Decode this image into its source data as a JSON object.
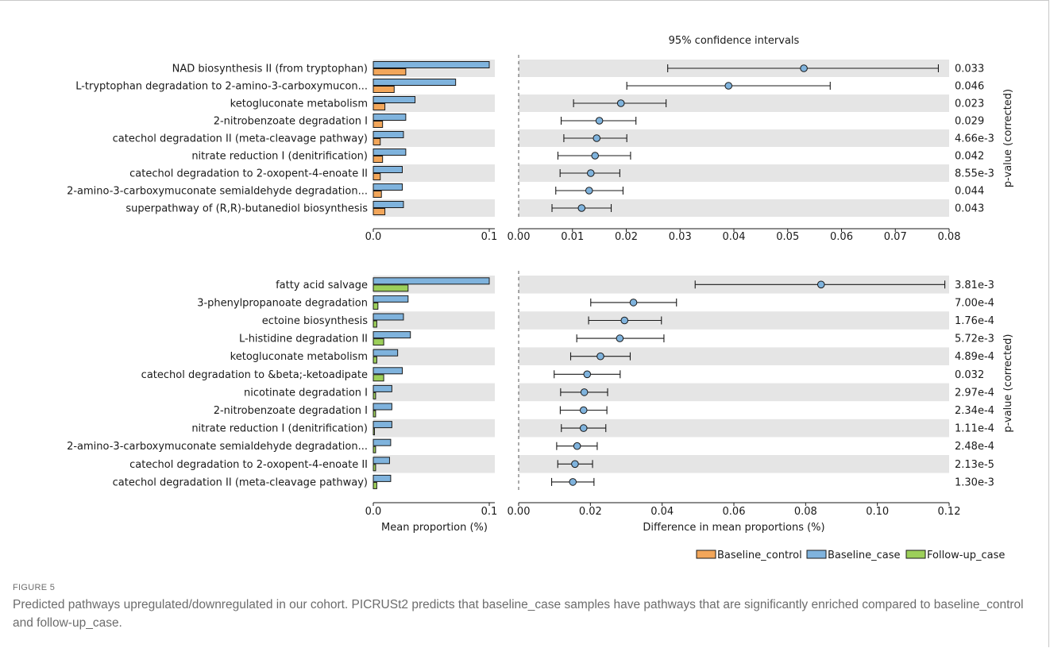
{
  "figure": {
    "label": "FIGURE 5",
    "caption": "Predicted pathways upregulated/downregulated in our cohort. PICRUSt2 predicts that baseline_case samples have pathways that are significantly enriched compared to baseline_control and follow-up_case."
  },
  "legend": [
    {
      "name": "Baseline_control",
      "color": "#f2a65a"
    },
    {
      "name": "Baseline_case",
      "color": "#7fb3dd"
    },
    {
      "name": "Follow-up_case",
      "color": "#9ccf5a"
    }
  ],
  "chart_data": [
    {
      "type": "bar",
      "panel": "top-left",
      "categories": [
        "NAD biosynthesis II (from tryptophan)",
        "L-tryptophan degradation to 2-amino-3-carboxymucon...",
        "ketogluconate metabolism",
        "2-nitrobenzoate degradation I",
        "catechol degradation II (meta-cleavage pathway)",
        "nitrate reduction I (denitrification)",
        "catechol degradation to 2-oxopent-4-enoate II",
        "2-amino-3-carboxymuconate semialdehyde degradation...",
        "superpathway of (R,R)-butanediol biosynthesis"
      ],
      "series": [
        {
          "name": "Baseline_case",
          "values": [
            0.1,
            0.071,
            0.036,
            0.028,
            0.026,
            0.028,
            0.025,
            0.025,
            0.026
          ]
        },
        {
          "name": "Baseline_control",
          "values": [
            0.028,
            0.018,
            0.01,
            0.008,
            0.006,
            0.008,
            0.006,
            0.007,
            0.01
          ]
        }
      ],
      "xlim": [
        0,
        0.1
      ],
      "xticks": [
        "0.0",
        "0.1"
      ],
      "xlabel": ""
    },
    {
      "type": "scatter",
      "panel": "top-right",
      "title": "95% confidence intervals",
      "categories": [
        "NAD biosynthesis II (from tryptophan)",
        "L-tryptophan degradation to 2-amino-3-carboxymucon...",
        "ketogluconate metabolism",
        "2-nitrobenzoate degradation I",
        "catechol degradation II (meta-cleavage pathway)",
        "nitrate reduction I (denitrification)",
        "catechol degradation to 2-oxopent-4-enoate II",
        "2-amino-3-carboxymuconate semialdehyde degradation...",
        "superpathway of (R,R)-butanediol biosynthesis"
      ],
      "means": [
        0.053,
        0.039,
        0.019,
        0.015,
        0.0145,
        0.0142,
        0.0134,
        0.0131,
        0.0117
      ],
      "lower": [
        0.0277,
        0.0201,
        0.0102,
        0.0079,
        0.0084,
        0.0073,
        0.0077,
        0.0069,
        0.0062
      ],
      "upper": [
        0.078,
        0.0579,
        0.0274,
        0.0218,
        0.0201,
        0.0208,
        0.0188,
        0.0194,
        0.0172
      ],
      "pvalues": [
        "0.033",
        "0.046",
        "0.023",
        "0.029",
        "4.66e-3",
        "0.042",
        "8.55e-3",
        "0.044",
        "0.043"
      ],
      "xlim": [
        0,
        0.08
      ],
      "xticks": [
        "0.00",
        "0.01",
        "0.02",
        "0.03",
        "0.04",
        "0.05",
        "0.06",
        "0.07",
        "0.08"
      ],
      "right_label": "p-value (corrected)"
    },
    {
      "type": "bar",
      "panel": "bottom-left",
      "categories": [
        "fatty acid salvage",
        "3-phenylpropanoate degradation",
        "ectoine biosynthesis",
        "L-histidine degradation II",
        "ketogluconate metabolism",
        "catechol degradation to &beta;-ketoadipate",
        "nicotinate degradation I",
        "2-nitrobenzoate degradation I",
        "nitrate reduction I (denitrification)",
        "2-amino-3-carboxymuconate semialdehyde degradation...",
        "catechol degradation to 2-oxopent-4-enoate II",
        "catechol degradation II (meta-cleavage pathway)"
      ],
      "series": [
        {
          "name": "Baseline_case",
          "values": [
            0.1,
            0.03,
            0.026,
            0.032,
            0.021,
            0.025,
            0.016,
            0.016,
            0.016,
            0.015,
            0.014,
            0.015
          ]
        },
        {
          "name": "Follow-up_case",
          "values": [
            0.03,
            0.004,
            0.003,
            0.009,
            0.003,
            0.009,
            0.002,
            0.002,
            0.001,
            0.002,
            0.002,
            0.003
          ]
        }
      ],
      "xlim": [
        0,
        0.1
      ],
      "xticks": [
        "0.0",
        "0.1"
      ],
      "xlabel": "Mean proportion (%)"
    },
    {
      "type": "scatter",
      "panel": "bottom-right",
      "categories": [
        "fatty acid salvage",
        "3-phenylpropanoate degradation",
        "ectoine biosynthesis",
        "L-histidine degradation II",
        "ketogluconate metabolism",
        "catechol degradation to &beta;-ketoadipate",
        "nicotinate degradation I",
        "2-nitrobenzoate degradation I",
        "nitrate reduction I (denitrification)",
        "2-amino-3-carboxymuconate semialdehyde degradation...",
        "catechol degradation to 2-oxopent-4-enoate II",
        "catechol degradation II (meta-cleavage pathway)"
      ],
      "means": [
        0.0843,
        0.032,
        0.0295,
        0.0282,
        0.0228,
        0.0191,
        0.0183,
        0.0181,
        0.0181,
        0.0163,
        0.0157,
        0.0151
      ],
      "lower": [
        0.0492,
        0.0201,
        0.0195,
        0.0162,
        0.0145,
        0.0099,
        0.0117,
        0.0116,
        0.0119,
        0.0106,
        0.0109,
        0.0092
      ],
      "upper": [
        0.1188,
        0.044,
        0.0398,
        0.0405,
        0.0311,
        0.0283,
        0.0248,
        0.0246,
        0.0243,
        0.0219,
        0.0206,
        0.021
      ],
      "pvalues": [
        "3.81e-3",
        "7.00e-4",
        "1.76e-4",
        "5.72e-3",
        "4.89e-4",
        "0.032",
        "2.97e-4",
        "2.34e-4",
        "1.11e-4",
        "2.48e-4",
        "2.13e-5",
        "1.30e-3"
      ],
      "xlim": [
        0,
        0.12
      ],
      "xticks": [
        "0.00",
        "0.02",
        "0.04",
        "0.06",
        "0.08",
        "0.10",
        "0.12"
      ],
      "xlabel": "Difference in mean proportions (%)",
      "right_label": "p-value (corrected)"
    }
  ]
}
